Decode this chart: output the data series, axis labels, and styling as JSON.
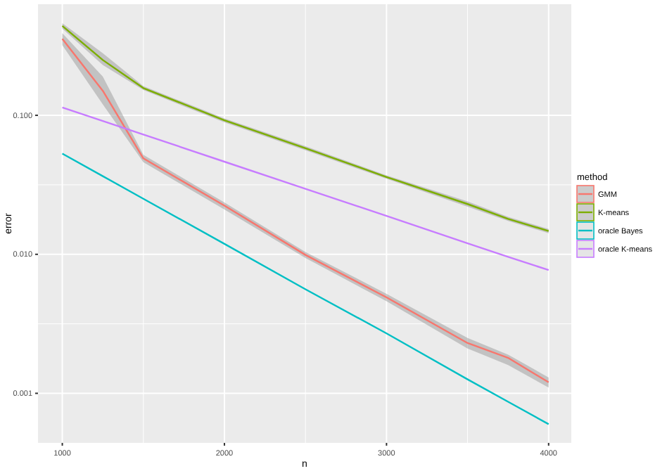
{
  "chart_data": {
    "type": "line",
    "xlabel": "n",
    "ylabel": "error",
    "legend_title": "method",
    "log": "y",
    "grid": true,
    "legend": "right",
    "x": [
      1000,
      1250,
      1500,
      2000,
      2500,
      3000,
      3500,
      3750,
      4000
    ],
    "xlim": [
      850,
      4140
    ],
    "xticks": [
      1000,
      2000,
      3000,
      4000
    ],
    "ylim": [
      0.00044,
      0.63
    ],
    "yticks": [
      {
        "value": 0.001,
        "label": "0.001"
      },
      {
        "value": 0.01,
        "label": "0.010"
      },
      {
        "value": 0.1,
        "label": "0.100"
      }
    ],
    "series": [
      {
        "name": "GMM",
        "color": "#f8766d",
        "values": [
          0.355,
          0.15,
          0.049,
          0.0224,
          0.0099,
          0.0049,
          0.0023,
          0.0018,
          0.0012
        ],
        "lower": [
          0.32,
          0.12,
          0.046,
          0.021,
          0.0094,
          0.0046,
          0.0021,
          0.0016,
          0.0011
        ],
        "upper": [
          0.39,
          0.19,
          0.052,
          0.0236,
          0.0104,
          0.0052,
          0.0025,
          0.0019,
          0.0013
        ]
      },
      {
        "name": "K-means",
        "color": "#7cae00",
        "values": [
          0.44,
          0.25,
          0.157,
          0.092,
          0.058,
          0.036,
          0.023,
          0.018,
          0.0147
        ],
        "lower": [
          0.42,
          0.23,
          0.152,
          0.089,
          0.056,
          0.035,
          0.022,
          0.0174,
          0.0142
        ],
        "upper": [
          0.46,
          0.28,
          0.162,
          0.095,
          0.06,
          0.037,
          0.024,
          0.0186,
          0.0152
        ]
      },
      {
        "name": "oracle Bayes",
        "color": "#00bfc4",
        "values": [
          0.053,
          0.0365,
          0.0251,
          0.0119,
          0.0056,
          0.0027,
          0.00126,
          0.00087,
          0.0006
        ]
      },
      {
        "name": "oracle K-means",
        "color": "#c77cff",
        "values": [
          0.114,
          0.091,
          0.0728,
          0.0464,
          0.0296,
          0.0189,
          0.012,
          0.0096,
          0.0077
        ]
      }
    ]
  }
}
